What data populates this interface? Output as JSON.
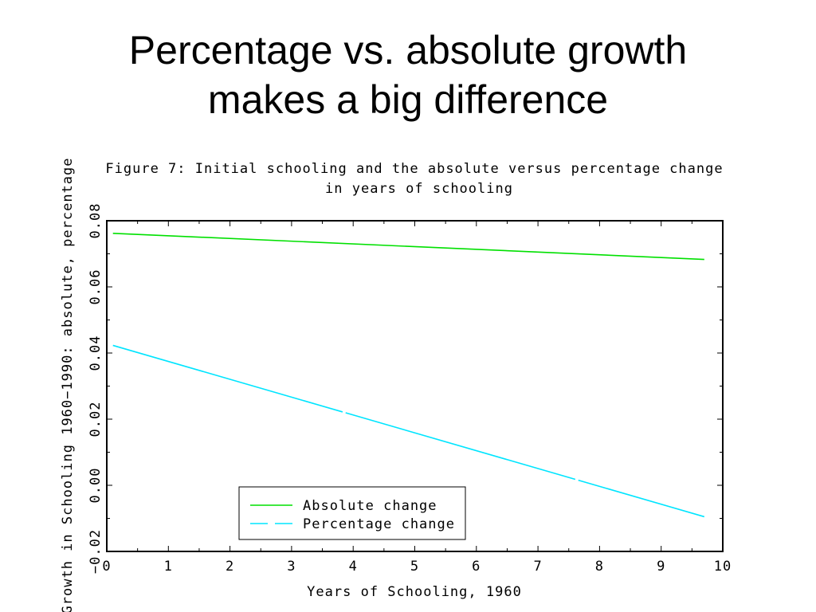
{
  "slide": {
    "title_line1": "Percentage vs. absolute growth",
    "title_line2": "makes a big difference"
  },
  "chart_data": {
    "type": "line",
    "title_line1": "Figure 7: Initial schooling and the absolute versus percentage change",
    "title_line2": "in years of schooling",
    "xlabel": "Years of Schooling, 1960",
    "ylabel": "Growth in Schooling 1960−1990: absolute, percentage",
    "xlim": [
      0,
      10
    ],
    "ylim": [
      -0.02,
      0.08
    ],
    "x_ticks": [
      0,
      1,
      2,
      3,
      4,
      5,
      6,
      7,
      8,
      9,
      10
    ],
    "x_tick_labels": [
      "0",
      "1",
      "2",
      "3",
      "4",
      "5",
      "6",
      "7",
      "8",
      "9",
      "10"
    ],
    "y_ticks": [
      -0.02,
      0.0,
      0.02,
      0.04,
      0.06,
      0.08
    ],
    "y_tick_labels": [
      "−0.02",
      "0.00",
      "0.02",
      "0.04",
      "0.06",
      "0.08"
    ],
    "grid": false,
    "legend_position": "bottom-center",
    "series": [
      {
        "name": "Absolute change",
        "color": "#00e000",
        "style": "solid",
        "x": [
          0.1,
          9.7
        ],
        "y": [
          0.0762,
          0.0683
        ]
      },
      {
        "name": "Percentage change",
        "color": "#00e5ff",
        "style": "long-dash",
        "x": [
          0.1,
          9.7
        ],
        "y": [
          0.0423,
          -0.0095
        ]
      }
    ]
  }
}
